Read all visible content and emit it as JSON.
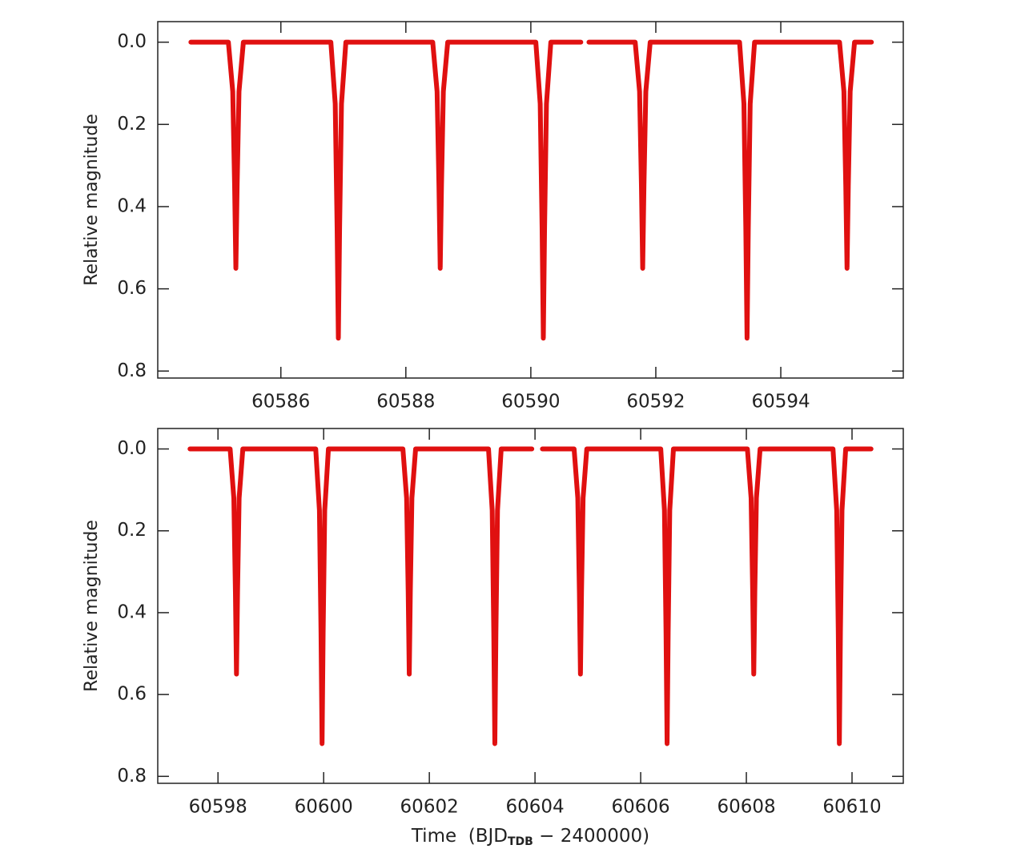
{
  "chart_data": [
    {
      "type": "line",
      "y_label": "Relative magnitude",
      "color": "#e01010",
      "y_inverted": true,
      "xlim": [
        60584.03,
        60595.96
      ],
      "ylim": [
        -0.05,
        0.817
      ],
      "xticks": [
        60586,
        60588,
        60590,
        60592,
        60594
      ],
      "yticks": [
        {
          "value": 0,
          "label": "0.0"
        },
        0.2,
        0.4,
        0.6,
        0.8
      ],
      "x": [
        60584.56,
        60585.16,
        60585.23,
        60585.26,
        60585.28,
        60585.3,
        60585.33,
        60585.4,
        60586.8,
        60586.87,
        60586.9,
        60586.92,
        60586.94,
        60586.97,
        60587.04,
        60588.43,
        60588.5,
        60588.53,
        60588.55,
        60588.57,
        60588.6,
        60588.67,
        60590.08,
        60590.15,
        60590.18,
        60590.2,
        60590.22,
        60590.25,
        60590.32,
        60590.8,
        60590.86,
        60590.93,
        60591.67,
        60591.74,
        60591.77,
        60591.79,
        60591.81,
        60591.84,
        60591.91,
        60593.34,
        60593.41,
        60593.44,
        60593.46,
        60593.48,
        60593.51,
        60593.58,
        60594.94,
        60595.01,
        60595.04,
        60595.06,
        60595.08,
        60595.11,
        60595.18,
        60595.45
      ],
      "values": [
        0.0,
        0.0,
        0.12,
        0.35,
        0.55,
        0.35,
        0.12,
        0.0,
        0.0,
        0.15,
        0.45,
        0.72,
        0.45,
        0.15,
        0.0,
        0.0,
        0.12,
        0.35,
        0.55,
        0.35,
        0.12,
        0.0,
        0.0,
        0.15,
        0.45,
        0.72,
        0.45,
        0.15,
        0.0,
        0.0,
        null,
        0.0,
        0.0,
        0.12,
        0.35,
        0.55,
        0.35,
        0.12,
        0.0,
        0.0,
        0.15,
        0.45,
        0.72,
        0.45,
        0.15,
        0.0,
        0.0,
        0.12,
        0.35,
        0.55,
        0.35,
        0.12,
        0.0,
        0.0
      ]
    },
    {
      "type": "line",
      "y_label": "Relative magnitude",
      "color": "#e01010",
      "y_inverted": true,
      "x_label": "Time  (BJD",
      "x_label_sub": "TDB",
      "x_label_end": " − 2400000)",
      "xlim": [
        60596.86,
        60610.97
      ],
      "ylim": [
        -0.05,
        0.817
      ],
      "xticks": [
        60598,
        60600,
        60602,
        60604,
        60606,
        60608,
        60610
      ],
      "yticks": [
        {
          "value": 0,
          "label": "0.0"
        },
        0.2,
        0.4,
        0.6,
        0.8
      ],
      "x": [
        60597.47,
        60598.23,
        60598.3,
        60598.33,
        60598.35,
        60598.37,
        60598.4,
        60598.47,
        60599.85,
        60599.92,
        60599.95,
        60599.97,
        60599.99,
        60600.02,
        60600.09,
        60601.5,
        60601.57,
        60601.6,
        60601.62,
        60601.64,
        60601.67,
        60601.74,
        60603.12,
        60603.19,
        60603.22,
        60603.24,
        60603.26,
        60603.29,
        60603.36,
        60603.94,
        60604.04,
        60604.14,
        60604.74,
        60604.81,
        60604.84,
        60604.86,
        60604.88,
        60604.91,
        60604.98,
        60606.38,
        60606.45,
        60606.48,
        60606.5,
        60606.52,
        60606.55,
        60606.62,
        60608.02,
        60608.09,
        60608.12,
        60608.14,
        60608.16,
        60608.19,
        60608.26,
        60609.64,
        60609.71,
        60609.74,
        60609.76,
        60609.78,
        60609.81,
        60609.88,
        60610.36
      ],
      "values": [
        0.0,
        0.0,
        0.12,
        0.35,
        0.55,
        0.35,
        0.12,
        0.0,
        0.0,
        0.15,
        0.45,
        0.72,
        0.45,
        0.15,
        0.0,
        0.0,
        0.12,
        0.35,
        0.55,
        0.35,
        0.12,
        0.0,
        0.0,
        0.15,
        0.45,
        0.72,
        0.45,
        0.15,
        0.0,
        0.0,
        null,
        0.0,
        0.0,
        0.12,
        0.35,
        0.55,
        0.35,
        0.12,
        0.0,
        0.0,
        0.15,
        0.45,
        0.72,
        0.45,
        0.15,
        0.0,
        0.0,
        0.12,
        0.35,
        0.55,
        0.35,
        0.12,
        0.0,
        0.0,
        0.15,
        0.45,
        0.72,
        0.45,
        0.15,
        0.0,
        0.0
      ]
    }
  ]
}
